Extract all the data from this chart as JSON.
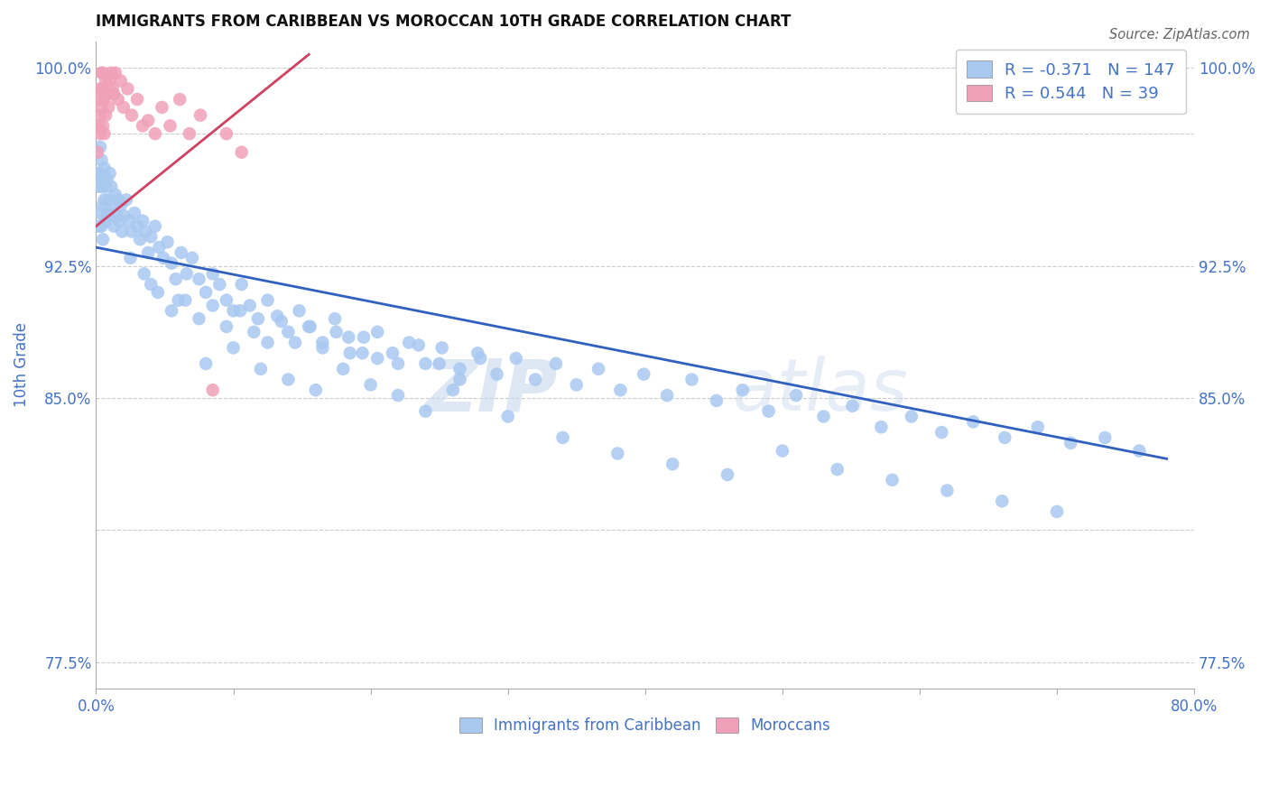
{
  "title": "IMMIGRANTS FROM CARIBBEAN VS MOROCCAN 10TH GRADE CORRELATION CHART",
  "source_text": "Source: ZipAtlas.com",
  "ylabel": "10th Grade",
  "xlim": [
    0.0,
    0.8
  ],
  "ylim": [
    0.765,
    1.01
  ],
  "xtick_pos": [
    0.0,
    0.1,
    0.2,
    0.3,
    0.4,
    0.5,
    0.6,
    0.7,
    0.8
  ],
  "xticklabels": [
    "0.0%",
    "",
    "",
    "",
    "",
    "",
    "",
    "",
    "80.0%"
  ],
  "ytick_pos": [
    0.775,
    0.825,
    0.875,
    0.925,
    0.975,
    1.0
  ],
  "yticklabels": [
    "77.5%",
    "",
    "85.0%",
    "92.5%",
    "",
    "100.0%"
  ],
  "blue_color": "#a8c8f0",
  "pink_color": "#f0a0b8",
  "blue_line_color": "#3060c0",
  "pink_line_color": "#d04060",
  "text_color": "#4472c4",
  "legend_R1": "-0.371",
  "legend_N1": "147",
  "legend_R2": "0.544",
  "legend_N2": "39",
  "watermark_zip": "ZIP",
  "watermark_atlas": "atlas",
  "blue_scatter_x": [
    0.001,
    0.002,
    0.002,
    0.003,
    0.003,
    0.003,
    0.004,
    0.004,
    0.004,
    0.005,
    0.005,
    0.005,
    0.006,
    0.006,
    0.007,
    0.007,
    0.008,
    0.008,
    0.009,
    0.01,
    0.01,
    0.011,
    0.012,
    0.013,
    0.014,
    0.015,
    0.016,
    0.017,
    0.018,
    0.019,
    0.02,
    0.022,
    0.024,
    0.026,
    0.028,
    0.03,
    0.032,
    0.034,
    0.036,
    0.038,
    0.04,
    0.043,
    0.046,
    0.049,
    0.052,
    0.055,
    0.058,
    0.062,
    0.066,
    0.07,
    0.075,
    0.08,
    0.085,
    0.09,
    0.095,
    0.1,
    0.106,
    0.112,
    0.118,
    0.125,
    0.132,
    0.14,
    0.148,
    0.156,
    0.165,
    0.174,
    0.184,
    0.194,
    0.205,
    0.216,
    0.228,
    0.24,
    0.252,
    0.265,
    0.278,
    0.292,
    0.306,
    0.32,
    0.335,
    0.35,
    0.366,
    0.382,
    0.399,
    0.416,
    0.434,
    0.452,
    0.471,
    0.49,
    0.51,
    0.53,
    0.551,
    0.572,
    0.594,
    0.616,
    0.639,
    0.662,
    0.686,
    0.71,
    0.735,
    0.76,
    0.025,
    0.035,
    0.045,
    0.055,
    0.065,
    0.075,
    0.085,
    0.095,
    0.105,
    0.115,
    0.125,
    0.135,
    0.145,
    0.155,
    0.165,
    0.175,
    0.185,
    0.195,
    0.205,
    0.22,
    0.235,
    0.25,
    0.265,
    0.28,
    0.04,
    0.06,
    0.08,
    0.1,
    0.12,
    0.14,
    0.16,
    0.18,
    0.2,
    0.22,
    0.24,
    0.26,
    0.3,
    0.34,
    0.38,
    0.42,
    0.46,
    0.5,
    0.54,
    0.58,
    0.62,
    0.66,
    0.7
  ],
  "blue_scatter_y": [
    0.96,
    0.955,
    0.94,
    0.97,
    0.96,
    0.945,
    0.965,
    0.955,
    0.94,
    0.958,
    0.948,
    0.935,
    0.962,
    0.95,
    0.955,
    0.942,
    0.958,
    0.944,
    0.95,
    0.96,
    0.945,
    0.955,
    0.948,
    0.94,
    0.952,
    0.944,
    0.95,
    0.942,
    0.948,
    0.938,
    0.944,
    0.95,
    0.942,
    0.938,
    0.945,
    0.94,
    0.935,
    0.942,
    0.938,
    0.93,
    0.936,
    0.94,
    0.932,
    0.928,
    0.934,
    0.926,
    0.92,
    0.93,
    0.922,
    0.928,
    0.92,
    0.915,
    0.922,
    0.918,
    0.912,
    0.908,
    0.918,
    0.91,
    0.905,
    0.912,
    0.906,
    0.9,
    0.908,
    0.902,
    0.896,
    0.905,
    0.898,
    0.892,
    0.9,
    0.892,
    0.896,
    0.888,
    0.894,
    0.886,
    0.892,
    0.884,
    0.89,
    0.882,
    0.888,
    0.88,
    0.886,
    0.878,
    0.884,
    0.876,
    0.882,
    0.874,
    0.878,
    0.87,
    0.876,
    0.868,
    0.872,
    0.864,
    0.868,
    0.862,
    0.866,
    0.86,
    0.864,
    0.858,
    0.86,
    0.855,
    0.928,
    0.922,
    0.915,
    0.908,
    0.912,
    0.905,
    0.91,
    0.902,
    0.908,
    0.9,
    0.896,
    0.904,
    0.896,
    0.902,
    0.894,
    0.9,
    0.892,
    0.898,
    0.89,
    0.888,
    0.895,
    0.888,
    0.882,
    0.89,
    0.918,
    0.912,
    0.888,
    0.894,
    0.886,
    0.882,
    0.878,
    0.886,
    0.88,
    0.876,
    0.87,
    0.878,
    0.868,
    0.86,
    0.854,
    0.85,
    0.846,
    0.855,
    0.848,
    0.844,
    0.84,
    0.836,
    0.832
  ],
  "pink_scatter_x": [
    0.001,
    0.002,
    0.002,
    0.003,
    0.003,
    0.003,
    0.004,
    0.004,
    0.005,
    0.005,
    0.005,
    0.006,
    0.006,
    0.007,
    0.007,
    0.008,
    0.009,
    0.01,
    0.011,
    0.012,
    0.013,
    0.014,
    0.016,
    0.018,
    0.02,
    0.023,
    0.026,
    0.03,
    0.034,
    0.038,
    0.043,
    0.048,
    0.054,
    0.061,
    0.068,
    0.076,
    0.085,
    0.095,
    0.106
  ],
  "pink_scatter_y": [
    0.968,
    0.978,
    0.988,
    0.982,
    0.992,
    0.975,
    0.985,
    0.998,
    0.992,
    0.978,
    0.998,
    0.988,
    0.975,
    0.995,
    0.982,
    0.99,
    0.985,
    0.995,
    0.998,
    0.992,
    0.99,
    0.998,
    0.988,
    0.995,
    0.985,
    0.992,
    0.982,
    0.988,
    0.978,
    0.98,
    0.975,
    0.985,
    0.978,
    0.988,
    0.975,
    0.982,
    0.878,
    0.975,
    0.968
  ]
}
